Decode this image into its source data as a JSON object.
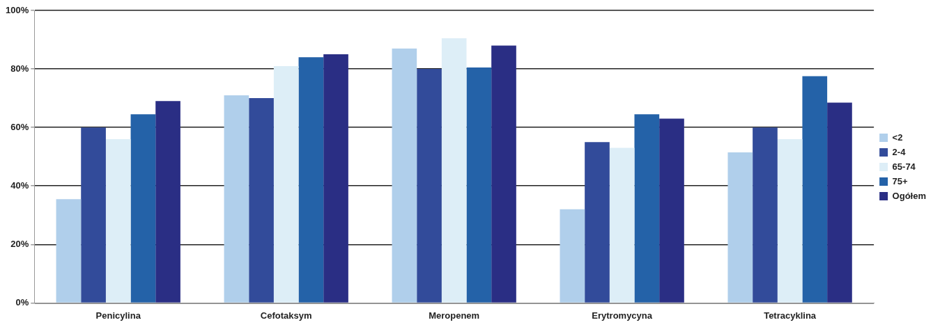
{
  "chart_data": {
    "type": "bar",
    "categories": [
      "Penicylina",
      "Cefotaksym",
      "Meropenem",
      "Erytromycyna",
      "Tetracyklina"
    ],
    "series": [
      {
        "name": "<2",
        "color": "#b0cfeb",
        "values": [
          35.5,
          71,
          87,
          32,
          51.5
        ]
      },
      {
        "name": "2-4",
        "color": "#324b9a",
        "values": [
          60,
          70,
          80,
          55,
          60
        ]
      },
      {
        "name": "65-74",
        "color": "#ddeef7",
        "values": [
          56,
          81,
          90.5,
          53,
          56
        ]
      },
      {
        "name": "75+",
        "color": "#2462a8",
        "values": [
          64.5,
          84,
          80.5,
          64.5,
          77.5
        ]
      },
      {
        "name": "Ogółem",
        "color": "#2a2e84",
        "values": [
          69,
          85,
          88,
          63,
          68.5
        ]
      }
    ],
    "ylim": [
      0,
      100
    ],
    "yticks": [
      {
        "value": 0,
        "label": "0%"
      },
      {
        "value": 20,
        "label": "20%"
      },
      {
        "value": 40,
        "label": "40%"
      },
      {
        "value": 60,
        "label": "60%"
      },
      {
        "value": 80,
        "label": "80%"
      },
      {
        "value": 100,
        "label": "100%"
      }
    ],
    "grid": "y",
    "legend": "right"
  }
}
